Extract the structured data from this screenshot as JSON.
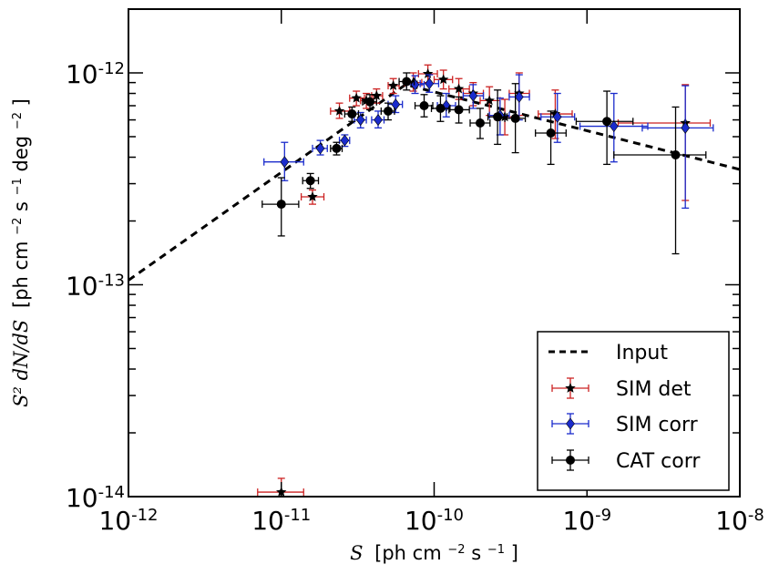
{
  "chart_data": {
    "type": "scatter",
    "xscale": "log",
    "yscale": "log",
    "xlim": [
      1e-12,
      1e-08
    ],
    "ylim": [
      1e-14,
      2e-12
    ],
    "xlabel": {
      "sym": "S",
      "text": "[ph cm",
      "exp1": "−2",
      "mid": " s",
      "exp2": "−1",
      "end": "]"
    },
    "ylabel": {
      "sym": "S² dN/dS",
      "text": "[ph cm",
      "exp1": "−2",
      "mid": " s",
      "exp2": "−1",
      "mid2": " deg",
      "exp3": "−2",
      "end": "]"
    },
    "xticks": [
      {
        "value": 1e-12,
        "base": "10",
        "exp": "-12"
      },
      {
        "value": 1e-11,
        "base": "10",
        "exp": "-11"
      },
      {
        "value": 1e-10,
        "base": "10",
        "exp": "-10"
      },
      {
        "value": 1e-09,
        "base": "10",
        "exp": "-9"
      },
      {
        "value": 1e-08,
        "base": "10",
        "exp": "-8"
      }
    ],
    "yticks": [
      {
        "value": 1e-14,
        "base": "10",
        "exp": "-14"
      },
      {
        "value": 1e-13,
        "base": "10",
        "exp": "-13"
      },
      {
        "value": 1e-12,
        "base": "10",
        "exp": "-12"
      }
    ],
    "input_line": {
      "name": "Input",
      "points": [
        [
          1e-12,
          1.05e-13
        ],
        [
          6.5e-11,
          8.8e-13
        ],
        [
          1e-08,
          3.5e-13
        ]
      ]
    },
    "series": [
      {
        "name": "SIM det",
        "color": "#cc2222",
        "marker": "star",
        "points": [
          {
            "x": 1e-11,
            "y": 1.05e-14,
            "xlo": 7e-12,
            "xhi": 1.4e-11,
            "ylo": 9e-15,
            "yhi": 1.22e-14
          },
          {
            "x": 1.6e-11,
            "y": 2.6e-13,
            "xlo": 1.35e-11,
            "xhi": 1.9e-11,
            "ylo": 2.4e-13,
            "yhi": 2.8e-13
          },
          {
            "x": 2.4e-11,
            "y": 6.6e-13,
            "xlo": 2.1e-11,
            "xhi": 2.8e-11,
            "ylo": 6.1e-13,
            "yhi": 7.2e-13
          },
          {
            "x": 3.1e-11,
            "y": 7.6e-13,
            "xlo": 2.8e-11,
            "xhi": 3.5e-11,
            "ylo": 7e-13,
            "yhi": 8.2e-13
          },
          {
            "x": 3.6e-11,
            "y": 7.4e-13,
            "xlo": 3.3e-11,
            "xhi": 4e-11,
            "ylo": 6.8e-13,
            "yhi": 8e-13
          },
          {
            "x": 4.2e-11,
            "y": 7.8e-13,
            "xlo": 3.9e-11,
            "xhi": 4.6e-11,
            "ylo": 7.2e-13,
            "yhi": 8.4e-13
          },
          {
            "x": 5.4e-11,
            "y": 8.7e-13,
            "xlo": 5e-11,
            "xhi": 5.9e-11,
            "ylo": 8e-13,
            "yhi": 9.4e-13
          },
          {
            "x": 7.3e-11,
            "y": 9e-13,
            "xlo": 6.4e-11,
            "xhi": 8.3e-11,
            "ylo": 8.2e-13,
            "yhi": 1e-12
          },
          {
            "x": 9.1e-11,
            "y": 9.9e-13,
            "xlo": 7.9e-11,
            "xhi": 1.05e-10,
            "ylo": 9e-13,
            "yhi": 1.09e-12
          },
          {
            "x": 1.15e-10,
            "y": 9.3e-13,
            "xlo": 1e-10,
            "xhi": 1.32e-10,
            "ylo": 8.4e-13,
            "yhi": 1.03e-12
          },
          {
            "x": 1.45e-10,
            "y": 8.4e-13,
            "xlo": 1.25e-10,
            "xhi": 1.7e-10,
            "ylo": 7.5e-13,
            "yhi": 9.4e-13
          },
          {
            "x": 1.8e-10,
            "y": 8e-13,
            "xlo": 1.55e-10,
            "xhi": 2.1e-10,
            "ylo": 7e-13,
            "yhi": 9e-13
          },
          {
            "x": 2.3e-10,
            "y": 7.4e-13,
            "xlo": 2e-10,
            "xhi": 2.7e-10,
            "ylo": 6.3e-13,
            "yhi": 8.6e-13
          },
          {
            "x": 2.9e-10,
            "y": 6.2e-13,
            "xlo": 2.5e-10,
            "xhi": 3.4e-10,
            "ylo": 5.1e-13,
            "yhi": 7.5e-13
          },
          {
            "x": 3.6e-10,
            "y": 8e-13,
            "xlo": 3.1e-10,
            "xhi": 4.2e-10,
            "ylo": 6.3e-13,
            "yhi": 1e-12
          },
          {
            "x": 6.2e-10,
            "y": 6.4e-13,
            "xlo": 4.8e-10,
            "xhi": 8e-10,
            "ylo": 4.9e-13,
            "yhi": 8.3e-13
          },
          {
            "x": 4.4e-09,
            "y": 5.8e-13,
            "xlo": 1.6e-09,
            "xhi": 6.4e-09,
            "ylo": 2.5e-13,
            "yhi": 8.8e-13
          }
        ]
      },
      {
        "name": "SIM corr",
        "color": "#1a2bcc",
        "marker": "diamond",
        "points": [
          {
            "x": 1.05e-11,
            "y": 3.8e-13,
            "xlo": 7.7e-12,
            "xhi": 1.4e-11,
            "ylo": 3.1e-13,
            "yhi": 4.7e-13
          },
          {
            "x": 1.8e-11,
            "y": 4.4e-13,
            "xlo": 1.6e-11,
            "xhi": 2e-11,
            "ylo": 4.1e-13,
            "yhi": 4.8e-13
          },
          {
            "x": 2.6e-11,
            "y": 4.8e-13,
            "xlo": 2.4e-11,
            "xhi": 2.8e-11,
            "ylo": 4.5e-13,
            "yhi": 5.1e-13
          },
          {
            "x": 3.3e-11,
            "y": 6e-13,
            "xlo": 3e-11,
            "xhi": 3.6e-11,
            "ylo": 5.5e-13,
            "yhi": 6.5e-13
          },
          {
            "x": 4.3e-11,
            "y": 6e-13,
            "xlo": 3.9e-11,
            "xhi": 4.7e-11,
            "ylo": 5.5e-13,
            "yhi": 6.6e-13
          },
          {
            "x": 5.6e-11,
            "y": 7.1e-13,
            "xlo": 5e-11,
            "xhi": 6.2e-11,
            "ylo": 6.5e-13,
            "yhi": 7.8e-13
          },
          {
            "x": 7.5e-11,
            "y": 8.8e-13,
            "xlo": 6.6e-11,
            "xhi": 8.6e-11,
            "ylo": 8e-13,
            "yhi": 9.7e-13
          },
          {
            "x": 9.3e-11,
            "y": 8.9e-13,
            "xlo": 8.1e-11,
            "xhi": 1.07e-10,
            "ylo": 8.1e-13,
            "yhi": 9.8e-13
          },
          {
            "x": 1.2e-10,
            "y": 7e-13,
            "xlo": 1.05e-10,
            "xhi": 1.38e-10,
            "ylo": 6.2e-13,
            "yhi": 8e-13
          },
          {
            "x": 1.8e-10,
            "y": 7.8e-13,
            "xlo": 1.55e-10,
            "xhi": 2.1e-10,
            "ylo": 6.8e-13,
            "yhi": 8.8e-13
          },
          {
            "x": 2.7e-10,
            "y": 6.3e-13,
            "xlo": 2.3e-10,
            "xhi": 3.1e-10,
            "ylo": 5.1e-13,
            "yhi": 7.6e-13
          },
          {
            "x": 3.6e-10,
            "y": 7.7e-13,
            "xlo": 3.1e-10,
            "xhi": 4.2e-10,
            "ylo": 6e-13,
            "yhi": 9.8e-13
          },
          {
            "x": 6.4e-10,
            "y": 6.2e-13,
            "xlo": 5e-10,
            "xhi": 8.3e-10,
            "ylo": 4.7e-13,
            "yhi": 8e-13
          },
          {
            "x": 1.5e-09,
            "y": 5.6e-13,
            "xlo": 9e-10,
            "xhi": 2.5e-09,
            "ylo": 3.8e-13,
            "yhi": 8e-13
          },
          {
            "x": 4.4e-09,
            "y": 5.5e-13,
            "xlo": 2.3e-09,
            "xhi": 6.7e-09,
            "ylo": 2.3e-13,
            "yhi": 8.7e-13
          }
        ]
      },
      {
        "name": "CAT corr",
        "color": "#000000",
        "marker": "circle",
        "points": [
          {
            "x": 1e-11,
            "y": 2.4e-13,
            "xlo": 7.5e-12,
            "xhi": 1.3e-11,
            "ylo": 1.7e-13,
            "yhi": 3.2e-13
          },
          {
            "x": 1.55e-11,
            "y": 3.1e-13,
            "xlo": 1.38e-11,
            "xhi": 1.75e-11,
            "ylo": 2.85e-13,
            "yhi": 3.35e-13
          },
          {
            "x": 2.3e-11,
            "y": 4.4e-13,
            "xlo": 2.1e-11,
            "xhi": 2.5e-11,
            "ylo": 4.1e-13,
            "yhi": 4.7e-13
          },
          {
            "x": 2.9e-11,
            "y": 6.4e-13,
            "xlo": 2.6e-11,
            "xhi": 3.2e-11,
            "ylo": 5.9e-13,
            "yhi": 6.9e-13
          },
          {
            "x": 3.8e-11,
            "y": 7.3e-13,
            "xlo": 3.4e-11,
            "xhi": 4.2e-11,
            "ylo": 6.7e-13,
            "yhi": 7.9e-13
          },
          {
            "x": 5e-11,
            "y": 6.6e-13,
            "xlo": 4.5e-11,
            "xhi": 5.5e-11,
            "ylo": 6e-13,
            "yhi": 7.2e-13
          },
          {
            "x": 6.6e-11,
            "y": 9.1e-13,
            "xlo": 5.9e-11,
            "xhi": 7.4e-11,
            "ylo": 8.3e-13,
            "yhi": 1e-12
          },
          {
            "x": 8.6e-11,
            "y": 7e-13,
            "xlo": 7.5e-11,
            "xhi": 9.8e-11,
            "ylo": 6.2e-13,
            "yhi": 7.9e-13
          },
          {
            "x": 1.1e-10,
            "y": 6.8e-13,
            "xlo": 9.6e-11,
            "xhi": 1.27e-10,
            "ylo": 5.9e-13,
            "yhi": 7.8e-13
          },
          {
            "x": 1.45e-10,
            "y": 6.7e-13,
            "xlo": 1.25e-10,
            "xhi": 1.7e-10,
            "ylo": 5.8e-13,
            "yhi": 7.7e-13
          },
          {
            "x": 2e-10,
            "y": 5.8e-13,
            "xlo": 1.72e-10,
            "xhi": 2.32e-10,
            "ylo": 4.9e-13,
            "yhi": 6.8e-13
          },
          {
            "x": 2.6e-10,
            "y": 6.2e-13,
            "xlo": 2.25e-10,
            "xhi": 3e-10,
            "ylo": 4.6e-13,
            "yhi": 8.3e-13
          },
          {
            "x": 3.4e-10,
            "y": 6.1e-13,
            "xlo": 2.9e-10,
            "xhi": 3.95e-10,
            "ylo": 4.2e-13,
            "yhi": 8.9e-13
          },
          {
            "x": 5.8e-10,
            "y": 5.2e-13,
            "xlo": 4.6e-10,
            "xhi": 7.3e-10,
            "ylo": 3.7e-13,
            "yhi": 6.6e-13
          },
          {
            "x": 1.35e-09,
            "y": 5.9e-13,
            "xlo": 8.5e-10,
            "xhi": 2e-09,
            "ylo": 3.7e-13,
            "yhi": 8.2e-13
          },
          {
            "x": 3.8e-09,
            "y": 4.1e-13,
            "xlo": 1.5e-09,
            "xhi": 6e-09,
            "ylo": 1.4e-13,
            "yhi": 6.9e-13
          }
        ]
      }
    ],
    "legend": {
      "position": "bottom-right",
      "entries": [
        "Input",
        "SIM det",
        "SIM corr",
        "CAT corr"
      ]
    }
  }
}
